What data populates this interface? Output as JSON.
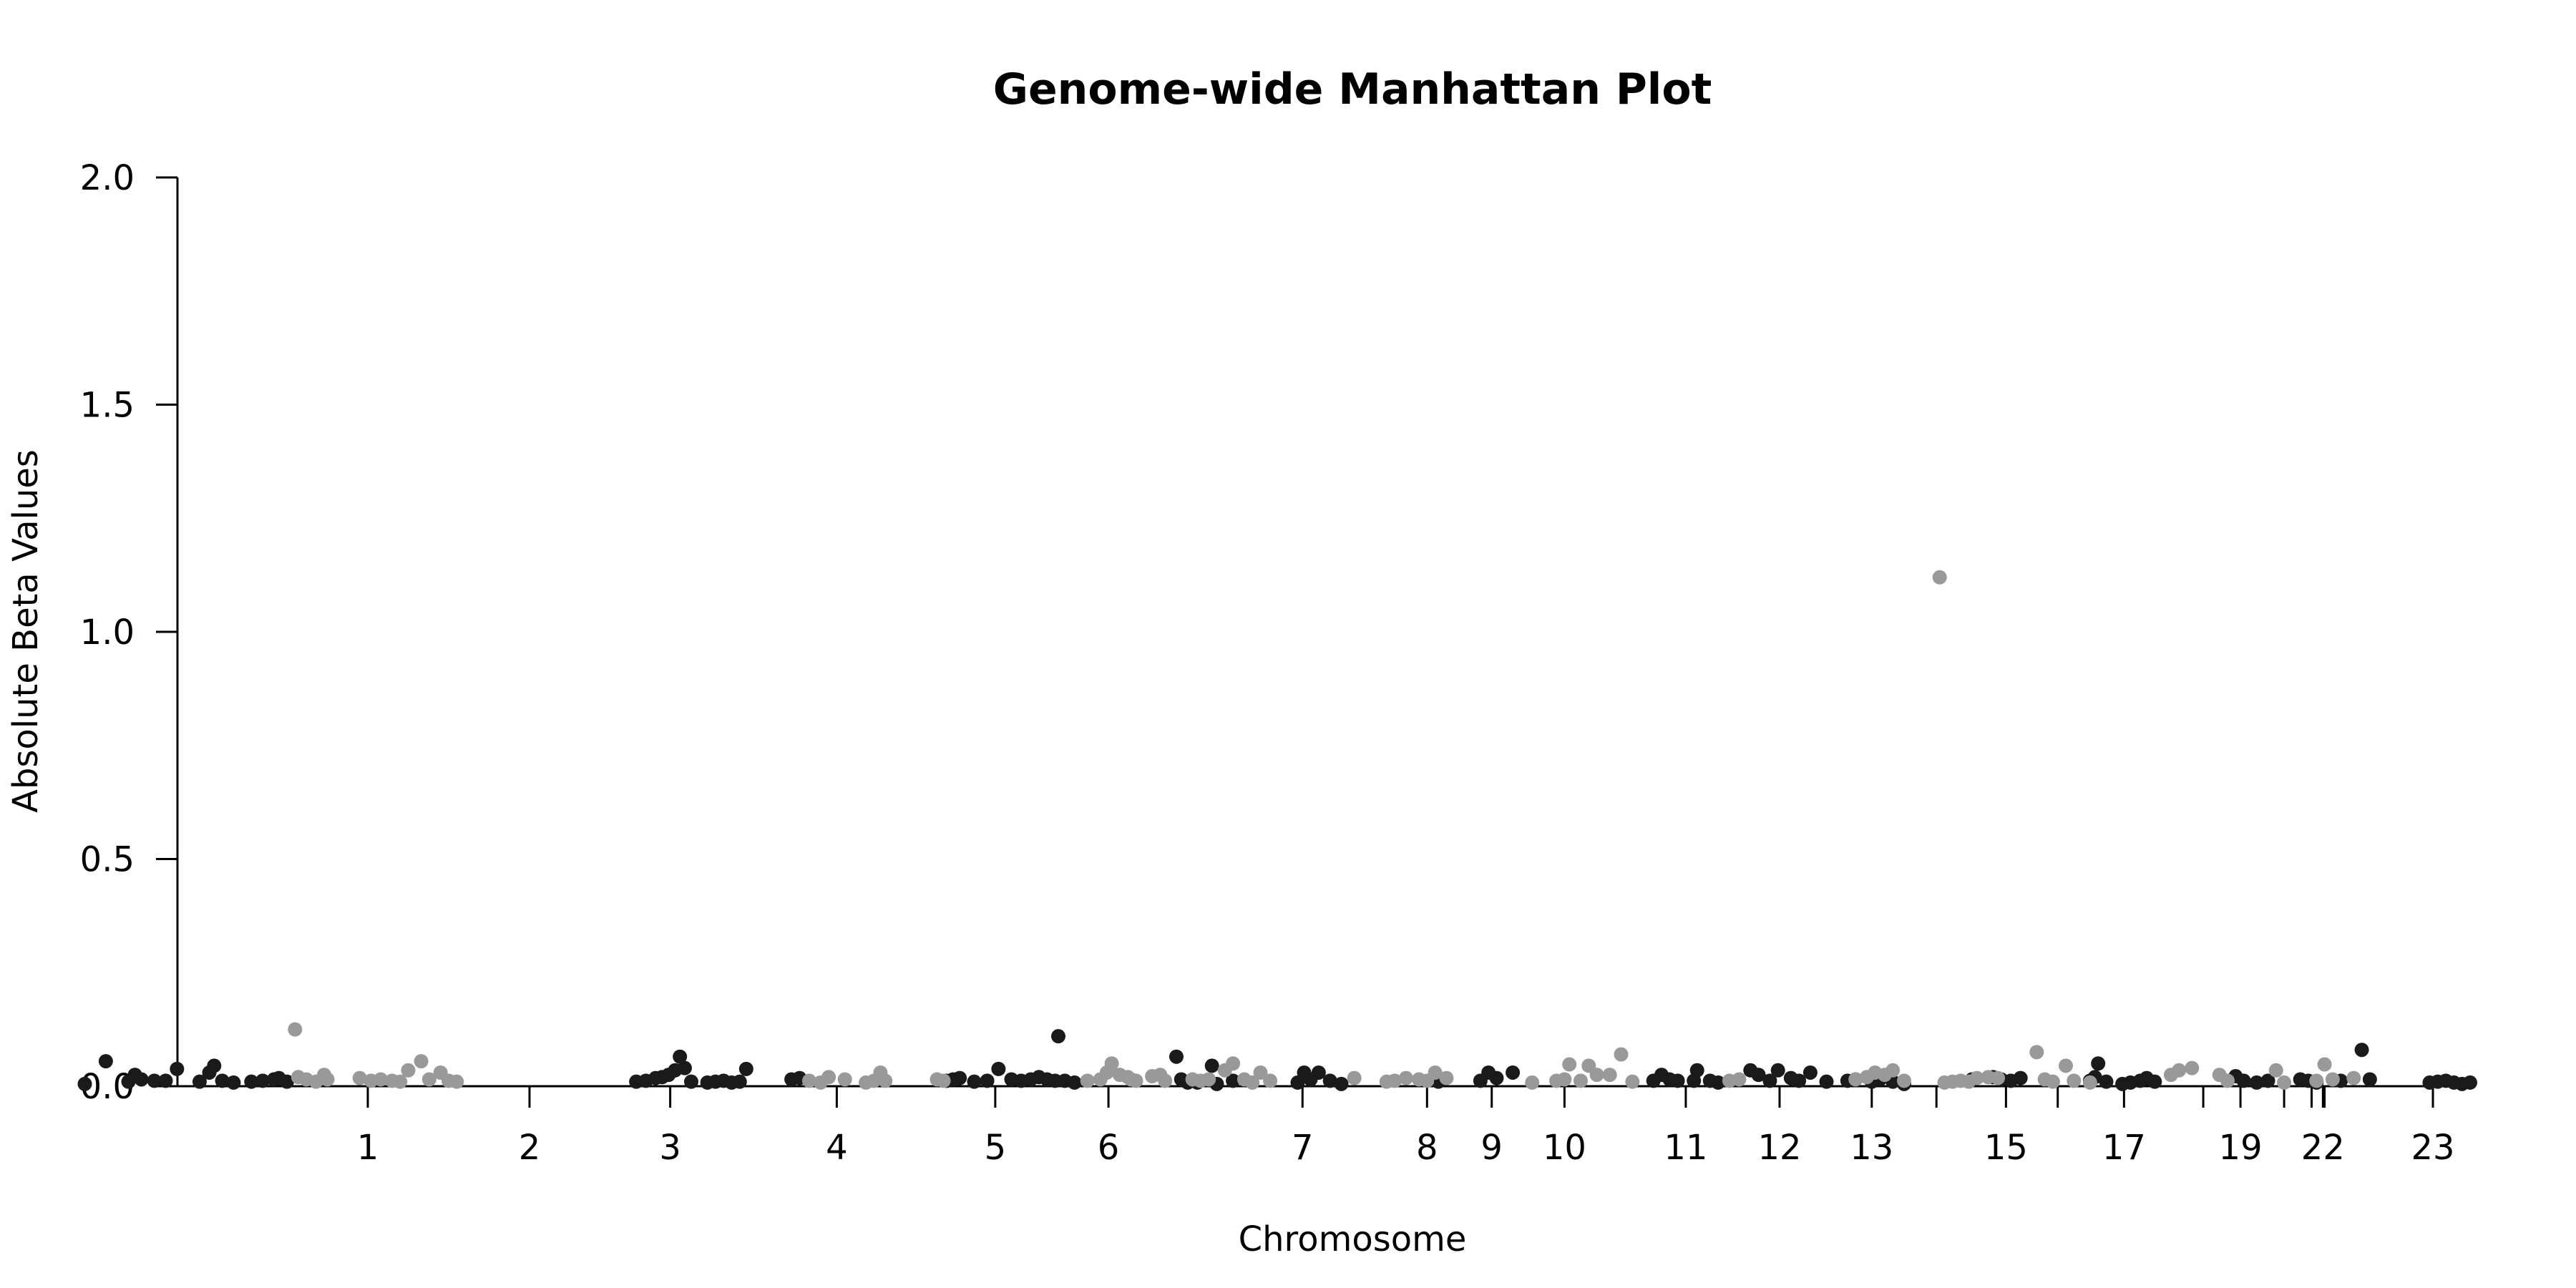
{
  "chart_data": {
    "type": "scatter",
    "title": "Genome-wide Manhattan Plot",
    "xlabel": "Chromosome",
    "ylabel": "Absolute Beta Values",
    "ylim": [
      0,
      2.0
    ],
    "yticks": [
      "0.0",
      "0.5",
      "1.0",
      "1.5",
      "2.0"
    ],
    "grid": false,
    "legend": "none",
    "colors": {
      "odd": "#1a1a1a",
      "even": "#999999",
      "axis": "#000000"
    },
    "chromosome_labels": [
      {
        "label": "1",
        "x": 1.0
      },
      {
        "label": "2",
        "x": 2.0
      },
      {
        "label": "3",
        "x": 2.87
      },
      {
        "label": "4",
        "x": 3.9
      },
      {
        "label": "5",
        "x": 4.88
      },
      {
        "label": "6",
        "x": 5.58
      },
      {
        "label": "7",
        "x": 6.78
      },
      {
        "label": "8",
        "x": 7.55
      },
      {
        "label": "9",
        "x": 7.95
      },
      {
        "label": "10",
        "x": 8.4
      },
      {
        "label": "11",
        "x": 9.15
      },
      {
        "label": "12",
        "x": 9.73
      },
      {
        "label": "13",
        "x": 10.3
      },
      {
        "label": "15",
        "x": 11.13
      },
      {
        "label": "17",
        "x": 11.86
      },
      {
        "label": "19",
        "x": 12.58
      },
      {
        "label": "22",
        "x": 13.09
      },
      {
        "label": "23",
        "x": 13.77
      }
    ],
    "extra_tick_positions": [
      10.7,
      11.45,
      12.35,
      12.85,
      13.02,
      13.1
    ],
    "series": [
      {
        "color_key": "odd",
        "points": [
          [
            -0.75,
            0.005
          ],
          [
            -0.62,
            0.055
          ],
          [
            -0.48,
            0.01
          ],
          [
            -0.44,
            0.025
          ],
          [
            -0.4,
            0.015
          ],
          [
            -0.32,
            0.012
          ],
          [
            -0.25,
            0.012
          ],
          [
            -0.18,
            0.038
          ],
          [
            -0.04,
            0.01
          ],
          [
            0.02,
            0.03
          ],
          [
            0.05,
            0.045
          ],
          [
            0.1,
            0.012
          ],
          [
            0.17,
            0.008
          ],
          [
            0.28,
            0.01
          ],
          [
            0.35,
            0.012
          ],
          [
            0.42,
            0.015
          ],
          [
            0.45,
            0.018
          ],
          [
            0.5,
            0.01
          ],
          [
            2.66,
            0.01
          ],
          [
            2.72,
            0.012
          ],
          [
            2.78,
            0.018
          ],
          [
            2.82,
            0.02
          ],
          [
            2.86,
            0.025
          ],
          [
            2.9,
            0.035
          ],
          [
            2.93,
            0.065
          ],
          [
            2.96,
            0.04
          ],
          [
            3.0,
            0.01
          ],
          [
            3.1,
            0.008
          ],
          [
            3.15,
            0.01
          ],
          [
            3.2,
            0.012
          ],
          [
            3.25,
            0.008
          ],
          [
            3.3,
            0.01
          ],
          [
            3.34,
            0.038
          ],
          [
            3.62,
            0.015
          ],
          [
            3.67,
            0.018
          ],
          [
            4.58,
            0.012
          ],
          [
            4.62,
            0.015
          ],
          [
            4.66,
            0.018
          ],
          [
            4.75,
            0.01
          ],
          [
            4.83,
            0.012
          ],
          [
            4.9,
            0.038
          ],
          [
            4.98,
            0.015
          ],
          [
            5.04,
            0.012
          ],
          [
            5.1,
            0.015
          ],
          [
            5.15,
            0.02
          ],
          [
            5.2,
            0.015
          ],
          [
            5.25,
            0.012
          ],
          [
            5.27,
            0.11
          ],
          [
            5.31,
            0.012
          ],
          [
            5.37,
            0.008
          ],
          [
            6.0,
            0.065
          ],
          [
            6.03,
            0.015
          ],
          [
            6.07,
            0.008
          ],
          [
            6.13,
            0.008
          ],
          [
            6.22,
            0.045
          ],
          [
            6.25,
            0.005
          ],
          [
            6.35,
            0.012
          ],
          [
            6.75,
            0.008
          ],
          [
            6.79,
            0.03
          ],
          [
            6.83,
            0.015
          ],
          [
            6.88,
            0.03
          ],
          [
            6.95,
            0.012
          ],
          [
            7.02,
            0.005
          ],
          [
            7.62,
            0.01
          ],
          [
            7.88,
            0.012
          ],
          [
            7.93,
            0.03
          ],
          [
            7.98,
            0.018
          ],
          [
            8.08,
            0.03
          ],
          [
            8.95,
            0.012
          ],
          [
            9.0,
            0.025
          ],
          [
            9.05,
            0.015
          ],
          [
            9.1,
            0.012
          ],
          [
            9.2,
            0.012
          ],
          [
            9.22,
            0.035
          ],
          [
            9.3,
            0.012
          ],
          [
            9.35,
            0.008
          ],
          [
            9.55,
            0.035
          ],
          [
            9.6,
            0.025
          ],
          [
            9.67,
            0.012
          ],
          [
            9.72,
            0.035
          ],
          [
            9.8,
            0.018
          ],
          [
            9.85,
            0.012
          ],
          [
            9.92,
            0.03
          ],
          [
            10.02,
            0.01
          ],
          [
            10.15,
            0.012
          ],
          [
            10.2,
            0.015
          ],
          [
            10.3,
            0.01
          ],
          [
            10.35,
            0.015
          ],
          [
            10.43,
            0.01
          ],
          [
            10.5,
            0.005
          ],
          [
            10.92,
            0.015
          ],
          [
            11.05,
            0.02
          ],
          [
            11.1,
            0.015
          ],
          [
            11.16,
            0.012
          ],
          [
            11.22,
            0.018
          ],
          [
            11.65,
            0.012
          ],
          [
            11.68,
            0.02
          ],
          [
            11.7,
            0.05
          ],
          [
            11.75,
            0.01
          ],
          [
            11.85,
            0.005
          ],
          [
            11.9,
            0.008
          ],
          [
            11.96,
            0.012
          ],
          [
            12.0,
            0.018
          ],
          [
            12.05,
            0.01
          ],
          [
            12.55,
            0.022
          ],
          [
            12.6,
            0.012
          ],
          [
            12.68,
            0.008
          ],
          [
            12.75,
            0.012
          ],
          [
            12.95,
            0.015
          ],
          [
            13.0,
            0.012
          ],
          [
            13.05,
            0.008
          ],
          [
            13.2,
            0.012
          ],
          [
            13.33,
            0.08
          ],
          [
            13.38,
            0.015
          ],
          [
            13.75,
            0.008
          ],
          [
            13.8,
            0.01
          ],
          [
            13.85,
            0.012
          ],
          [
            13.9,
            0.008
          ],
          [
            13.95,
            0.005
          ],
          [
            14.0,
            0.008
          ]
        ]
      },
      {
        "color_key": "even",
        "points": [
          [
            0.55,
            0.125
          ],
          [
            0.57,
            0.02
          ],
          [
            0.62,
            0.015
          ],
          [
            0.68,
            0.01
          ],
          [
            0.73,
            0.025
          ],
          [
            0.75,
            0.015
          ],
          [
            0.95,
            0.018
          ],
          [
            1.02,
            0.012
          ],
          [
            1.08,
            0.015
          ],
          [
            1.15,
            0.012
          ],
          [
            1.2,
            0.01
          ],
          [
            1.25,
            0.035
          ],
          [
            1.33,
            0.055
          ],
          [
            1.38,
            0.015
          ],
          [
            1.45,
            0.03
          ],
          [
            1.5,
            0.012
          ],
          [
            1.55,
            0.01
          ],
          [
            3.73,
            0.012
          ],
          [
            3.8,
            0.008
          ],
          [
            3.85,
            0.02
          ],
          [
            3.95,
            0.015
          ],
          [
            4.08,
            0.008
          ],
          [
            4.13,
            0.012
          ],
          [
            4.17,
            0.03
          ],
          [
            4.2,
            0.012
          ],
          [
            4.52,
            0.015
          ],
          [
            4.56,
            0.012
          ],
          [
            5.45,
            0.012
          ],
          [
            5.53,
            0.015
          ],
          [
            5.57,
            0.03
          ],
          [
            5.6,
            0.05
          ],
          [
            5.65,
            0.025
          ],
          [
            5.7,
            0.02
          ],
          [
            5.72,
            0.015
          ],
          [
            5.75,
            0.012
          ],
          [
            5.85,
            0.022
          ],
          [
            5.9,
            0.025
          ],
          [
            5.93,
            0.012
          ],
          [
            6.1,
            0.015
          ],
          [
            6.15,
            0.012
          ],
          [
            6.2,
            0.015
          ],
          [
            6.3,
            0.035
          ],
          [
            6.35,
            0.05
          ],
          [
            6.42,
            0.015
          ],
          [
            6.47,
            0.008
          ],
          [
            6.52,
            0.03
          ],
          [
            6.58,
            0.012
          ],
          [
            7.1,
            0.018
          ],
          [
            7.3,
            0.01
          ],
          [
            7.35,
            0.012
          ],
          [
            7.42,
            0.018
          ],
          [
            7.5,
            0.015
          ],
          [
            7.55,
            0.012
          ],
          [
            7.6,
            0.03
          ],
          [
            7.67,
            0.018
          ],
          [
            8.2,
            0.008
          ],
          [
            8.35,
            0.012
          ],
          [
            8.4,
            0.015
          ],
          [
            8.43,
            0.048
          ],
          [
            8.5,
            0.012
          ],
          [
            8.55,
            0.045
          ],
          [
            8.6,
            0.025
          ],
          [
            8.68,
            0.025
          ],
          [
            8.75,
            0.07
          ],
          [
            8.82,
            0.01
          ],
          [
            9.42,
            0.012
          ],
          [
            9.48,
            0.015
          ],
          [
            10.2,
            0.015
          ],
          [
            10.27,
            0.02
          ],
          [
            10.32,
            0.03
          ],
          [
            10.38,
            0.025
          ],
          [
            10.43,
            0.035
          ],
          [
            10.5,
            0.012
          ],
          [
            10.72,
            1.12
          ],
          [
            10.75,
            0.008
          ],
          [
            10.8,
            0.01
          ],
          [
            10.85,
            0.012
          ],
          [
            10.9,
            0.01
          ],
          [
            10.95,
            0.018
          ],
          [
            11.02,
            0.02
          ],
          [
            11.08,
            0.018
          ],
          [
            11.32,
            0.075
          ],
          [
            11.37,
            0.015
          ],
          [
            11.42,
            0.01
          ],
          [
            11.5,
            0.045
          ],
          [
            11.55,
            0.012
          ],
          [
            11.65,
            0.008
          ],
          [
            12.15,
            0.025
          ],
          [
            12.2,
            0.035
          ],
          [
            12.28,
            0.04
          ],
          [
            12.45,
            0.025
          ],
          [
            12.5,
            0.012
          ],
          [
            12.8,
            0.035
          ],
          [
            12.85,
            0.008
          ],
          [
            13.05,
            0.012
          ],
          [
            13.1,
            0.048
          ],
          [
            13.15,
            0.015
          ],
          [
            13.28,
            0.018
          ]
        ]
      }
    ]
  }
}
